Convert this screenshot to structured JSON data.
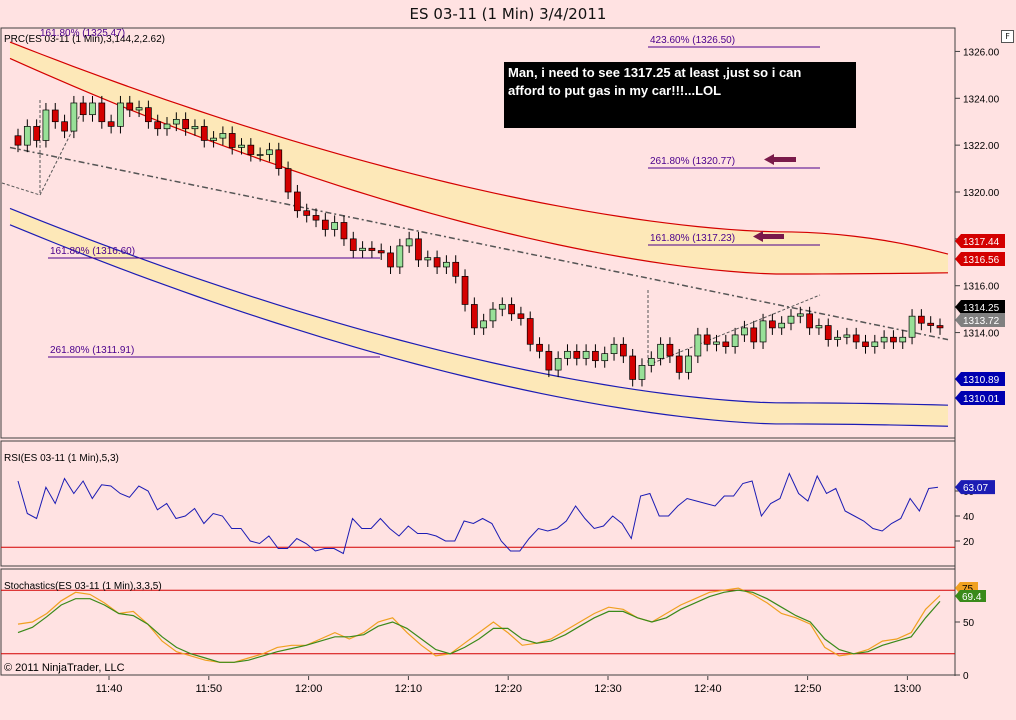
{
  "window": {
    "title": "ES 03-11 (1 Min)  3/4/2011"
  },
  "price_panel": {
    "label": "PRC(ES 03-11 (1 Min),3,144,2,2.62)",
    "fib_labels": [
      "423.60% (1326.50)",
      "261.80% (1320.77)",
      "161.80% (1317.23)",
      "161.80% (1316.60)",
      "261.80% (1311.91)"
    ],
    "fib_top_left_label": "161.80% (1325.47)",
    "annotation": "Man, i need to see 1317.25 at least ,just so i can afford to put gas in my car!!!...LOL",
    "markers": [
      {
        "value": "1317.44",
        "color": "#d40000"
      },
      {
        "value": "1316.56",
        "color": "#d40000"
      },
      {
        "value": "1314.25",
        "color": "#000000"
      },
      {
        "value": "1313.72",
        "color": "#808080"
      },
      {
        "value": "1310.89",
        "color": "#0000b0"
      },
      {
        "value": "1310.01",
        "color": "#0000b0"
      }
    ]
  },
  "rsi_panel": {
    "label": "RSI(ES 03-11 (1 Min),5,3)",
    "marker": "63.07"
  },
  "stoch_panel": {
    "label": "Stochastics(ES 03-11 (1 Min),3,3,5)",
    "marker_k": "75",
    "marker_d": "69.4"
  },
  "copyright": "© 2011 NinjaTrader, LLC",
  "colors": {
    "background": "#ffe2e2",
    "upper_band": "#d40000",
    "lower_band": "#1c1cb4",
    "band_fill": "#fde8b8",
    "up_candle": "#98e098",
    "down_candle": "#d40000",
    "fib_line": "#4b008c"
  },
  "chart_data": [
    {
      "type": "candlestick",
      "title": "ES 03-11 (1 Min)  3/4/2011",
      "x_ticks": [
        "11:40",
        "11:50",
        "12:00",
        "12:10",
        "12:20",
        "12:30",
        "12:40",
        "12:50",
        "13:00"
      ],
      "y_ticks": [
        "1312.00",
        "1314.00",
        "1316.00",
        "1318.00",
        "1320.00",
        "1322.00",
        "1324.00",
        "1326.00"
      ],
      "ylim": [
        1309.5,
        1327
      ],
      "closes": [
        1322.0,
        1322.8,
        1322.2,
        1323.5,
        1323.0,
        1322.6,
        1323.8,
        1323.3,
        1323.8,
        1323.0,
        1322.8,
        1323.8,
        1323.5,
        1323.6,
        1323.0,
        1322.7,
        1322.9,
        1323.1,
        1322.7,
        1322.8,
        1322.2,
        1322.3,
        1322.5,
        1321.9,
        1322.0,
        1321.6,
        1321.6,
        1321.8,
        1321.0,
        1320.0,
        1319.2,
        1319.0,
        1318.8,
        1318.4,
        1318.7,
        1318.0,
        1317.5,
        1317.6,
        1317.5,
        1317.4,
        1316.8,
        1317.7,
        1318.0,
        1317.1,
        1317.2,
        1316.8,
        1317.0,
        1316.4,
        1315.2,
        1314.2,
        1314.5,
        1315.0,
        1315.2,
        1314.8,
        1314.6,
        1313.5,
        1313.2,
        1312.4,
        1312.9,
        1313.2,
        1312.9,
        1313.2,
        1312.8,
        1313.1,
        1313.5,
        1313.0,
        1312.0,
        1312.6,
        1312.9,
        1313.5,
        1313.0,
        1312.3,
        1313.0,
        1313.9,
        1313.5,
        1313.6,
        1313.4,
        1313.9,
        1314.2,
        1313.6,
        1314.5,
        1314.2,
        1314.4,
        1314.7,
        1314.8,
        1314.2,
        1314.3,
        1313.7,
        1313.8,
        1313.9,
        1313.6,
        1313.4,
        1313.6,
        1313.8,
        1313.6,
        1313.8,
        1314.7,
        1314.4,
        1314.3,
        1314.2
      ],
      "upper_band_outer": [
        1326.4,
        1318.3,
        1317.35
      ],
      "upper_band_inner": [
        1325.7,
        1316.5,
        1316.55
      ],
      "middle_line": [
        1321.9,
        1313.7
      ],
      "lower_band_outer": [
        1319.3,
        1311.0,
        1310.9
      ],
      "lower_band_inner": [
        1318.6,
        1310.1,
        1310.0
      ]
    },
    {
      "type": "line",
      "title": "RSI(ES 03-11 (1 Min),5,3)",
      "y_ticks": [
        "20",
        "40",
        "60"
      ],
      "ylim": [
        0,
        100
      ],
      "levels": [
        15
      ],
      "values": [
        68,
        42,
        38,
        63,
        50,
        70,
        58,
        68,
        54,
        65,
        64,
        58,
        55,
        64,
        60,
        45,
        50,
        38,
        40,
        46,
        34,
        42,
        40,
        30,
        30,
        20,
        18,
        24,
        14,
        14,
        22,
        18,
        12,
        14,
        14,
        10,
        38,
        30,
        30,
        38,
        30,
        24,
        32,
        26,
        26,
        24,
        20,
        20,
        36,
        34,
        38,
        34,
        20,
        12,
        12,
        22,
        30,
        28,
        30,
        36,
        48,
        38,
        30,
        32,
        40,
        34,
        22,
        56,
        58,
        40,
        40,
        48,
        54,
        52,
        50,
        48,
        56,
        56,
        66,
        68,
        40,
        50,
        54,
        74,
        58,
        52,
        72,
        58,
        62,
        44,
        40,
        36,
        30,
        28,
        34,
        38,
        54,
        44,
        62,
        63.07
      ]
    },
    {
      "type": "line",
      "title": "Stochastics(ES 03-11 (1 Min),3,3,5)",
      "y_ticks": [
        "0",
        "50"
      ],
      "ylim": [
        0,
        100
      ],
      "levels": [
        20,
        80
      ],
      "series": [
        {
          "name": "",
          "values": [
            48,
            50,
            58,
            70,
            78,
            76,
            68,
            58,
            60,
            48,
            32,
            22,
            18,
            14,
            12,
            12,
            16,
            20,
            26,
            28,
            28,
            34,
            40,
            34,
            40,
            50,
            54,
            40,
            28,
            18,
            20,
            30,
            40,
            50,
            40,
            28,
            30,
            34,
            42,
            50,
            58,
            64,
            62,
            54,
            50,
            58,
            66,
            72,
            78,
            80,
            82,
            76,
            68,
            58,
            54,
            48,
            26,
            18,
            20,
            24,
            32,
            34,
            40,
            62,
            75
          ]
        },
        {
          "name": "",
          "values": [
            40,
            45,
            55,
            66,
            72,
            72,
            66,
            58,
            56,
            48,
            36,
            26,
            20,
            16,
            12,
            12,
            14,
            18,
            22,
            25,
            28,
            32,
            36,
            36,
            38,
            46,
            50,
            44,
            34,
            24,
            20,
            26,
            34,
            44,
            44,
            34,
            30,
            32,
            38,
            46,
            54,
            60,
            60,
            54,
            50,
            54,
            62,
            68,
            74,
            78,
            80,
            78,
            72,
            64,
            56,
            50,
            34,
            24,
            20,
            22,
            28,
            32,
            36,
            54,
            69.4
          ]
        }
      ]
    }
  ]
}
